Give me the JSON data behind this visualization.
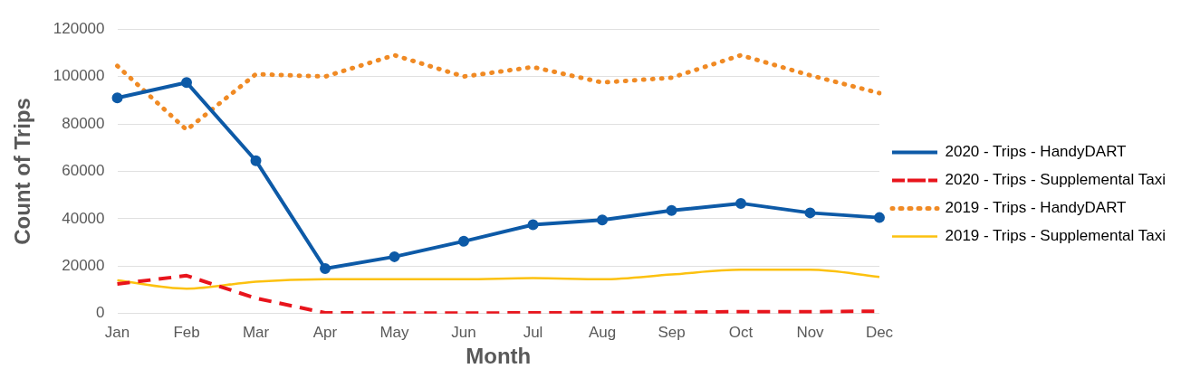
{
  "chart_data": {
    "type": "line",
    "xlabel": "Month",
    "ylabel": "Count of Trips",
    "categories": [
      "Jan",
      "Feb",
      "Mar",
      "Apr",
      "May",
      "Jun",
      "Jul",
      "Aug",
      "Sep",
      "Oct",
      "Nov",
      "Dec"
    ],
    "ylim": [
      0,
      120000
    ],
    "yticks": [
      0,
      20000,
      40000,
      60000,
      80000,
      100000,
      120000
    ],
    "grid": "y",
    "legend": "right",
    "series": [
      {
        "name": "2020 - Trips - HandyDART",
        "color": "#0d5aa7",
        "line_style": "solid",
        "marker": "circle",
        "values": [
          91000,
          97500,
          64500,
          19000,
          24000,
          30500,
          37500,
          39500,
          43500,
          46500,
          42500,
          40500
        ]
      },
      {
        "name": "2020 - Trips - Supplemental Taxi",
        "color": "#e8141c",
        "line_style": "dashed",
        "marker": "none",
        "values": [
          12500,
          16000,
          6500,
          300,
          200,
          200,
          300,
          400,
          500,
          800,
          800,
          1000
        ]
      },
      {
        "name": "2019 - Trips - HandyDART",
        "color": "#f08a24",
        "line_style": "dotted",
        "marker": "none",
        "values": [
          104500,
          77500,
          101000,
          100000,
          109000,
          100000,
          104000,
          97500,
          99500,
          109000,
          100500,
          93000
        ]
      },
      {
        "name": "2019 - Trips - Supplemental Taxi",
        "color": "#fcc10f",
        "line_style": "solid",
        "marker": "none",
        "values": [
          14000,
          10500,
          13500,
          14500,
          14500,
          14500,
          15000,
          14500,
          16500,
          18500,
          18500,
          15500
        ]
      }
    ]
  }
}
